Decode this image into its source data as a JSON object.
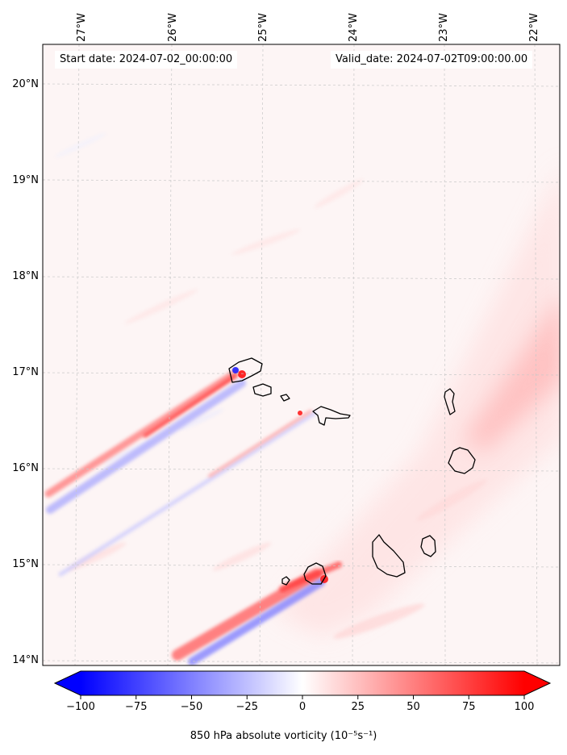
{
  "map": {
    "start_label": "Start date: 2024-07-02_00:00:00",
    "valid_label": "Valid_date: 2024-07-02T09:00:00.00",
    "lon_labels": [
      "27°W",
      "26°W",
      "25°W",
      "24°W",
      "23°W",
      "22°W"
    ],
    "lat_labels": [
      "20°N",
      "19°N",
      "18°N",
      "17°N",
      "16°N",
      "15°N",
      "14°N"
    ],
    "region": {
      "lon_min": -27.3,
      "lon_max": -21.9,
      "lat_min": 13.95,
      "lat_max": 20.4
    }
  },
  "colorbar": {
    "ticks": [
      "−100",
      "−75",
      "−50",
      "−25",
      "0",
      "25",
      "50",
      "75",
      "100"
    ],
    "tick_values": [
      -100,
      -75,
      -50,
      -25,
      0,
      25,
      50,
      75,
      100
    ],
    "range": [
      -100,
      100
    ],
    "label": "850 hPa absolute vorticity (10⁻⁵s⁻¹)",
    "cmap_low": "#0000ff",
    "cmap_mid": "#ffffff",
    "cmap_high": "#ff0000"
  },
  "colors": {
    "background_field": "#fdf5f5",
    "coastline": "#000000",
    "gridline": "#c8c8c8"
  }
}
